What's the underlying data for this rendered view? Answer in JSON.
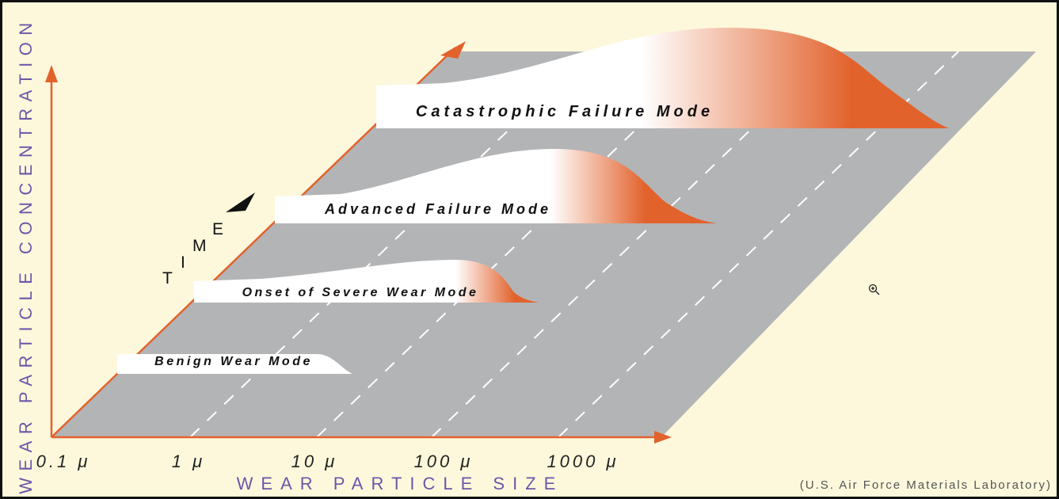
{
  "y_axis_label": "WEAR PARTICLE CONCENTRATION",
  "x_axis_label": "WEAR PARTICLE SIZE",
  "x_ticks": [
    "0.1 μ",
    "1 μ",
    "10 μ",
    "100 μ",
    "1000 μ"
  ],
  "time_letters": [
    "T",
    "I",
    "M",
    "E"
  ],
  "modes": [
    "Catastrophic Failure Mode",
    "Advanced Failure Mode",
    "Onset of Severe Wear Mode",
    "Benign Wear Mode"
  ],
  "credit": "(U.S. Air Force Materials Laboratory)"
}
